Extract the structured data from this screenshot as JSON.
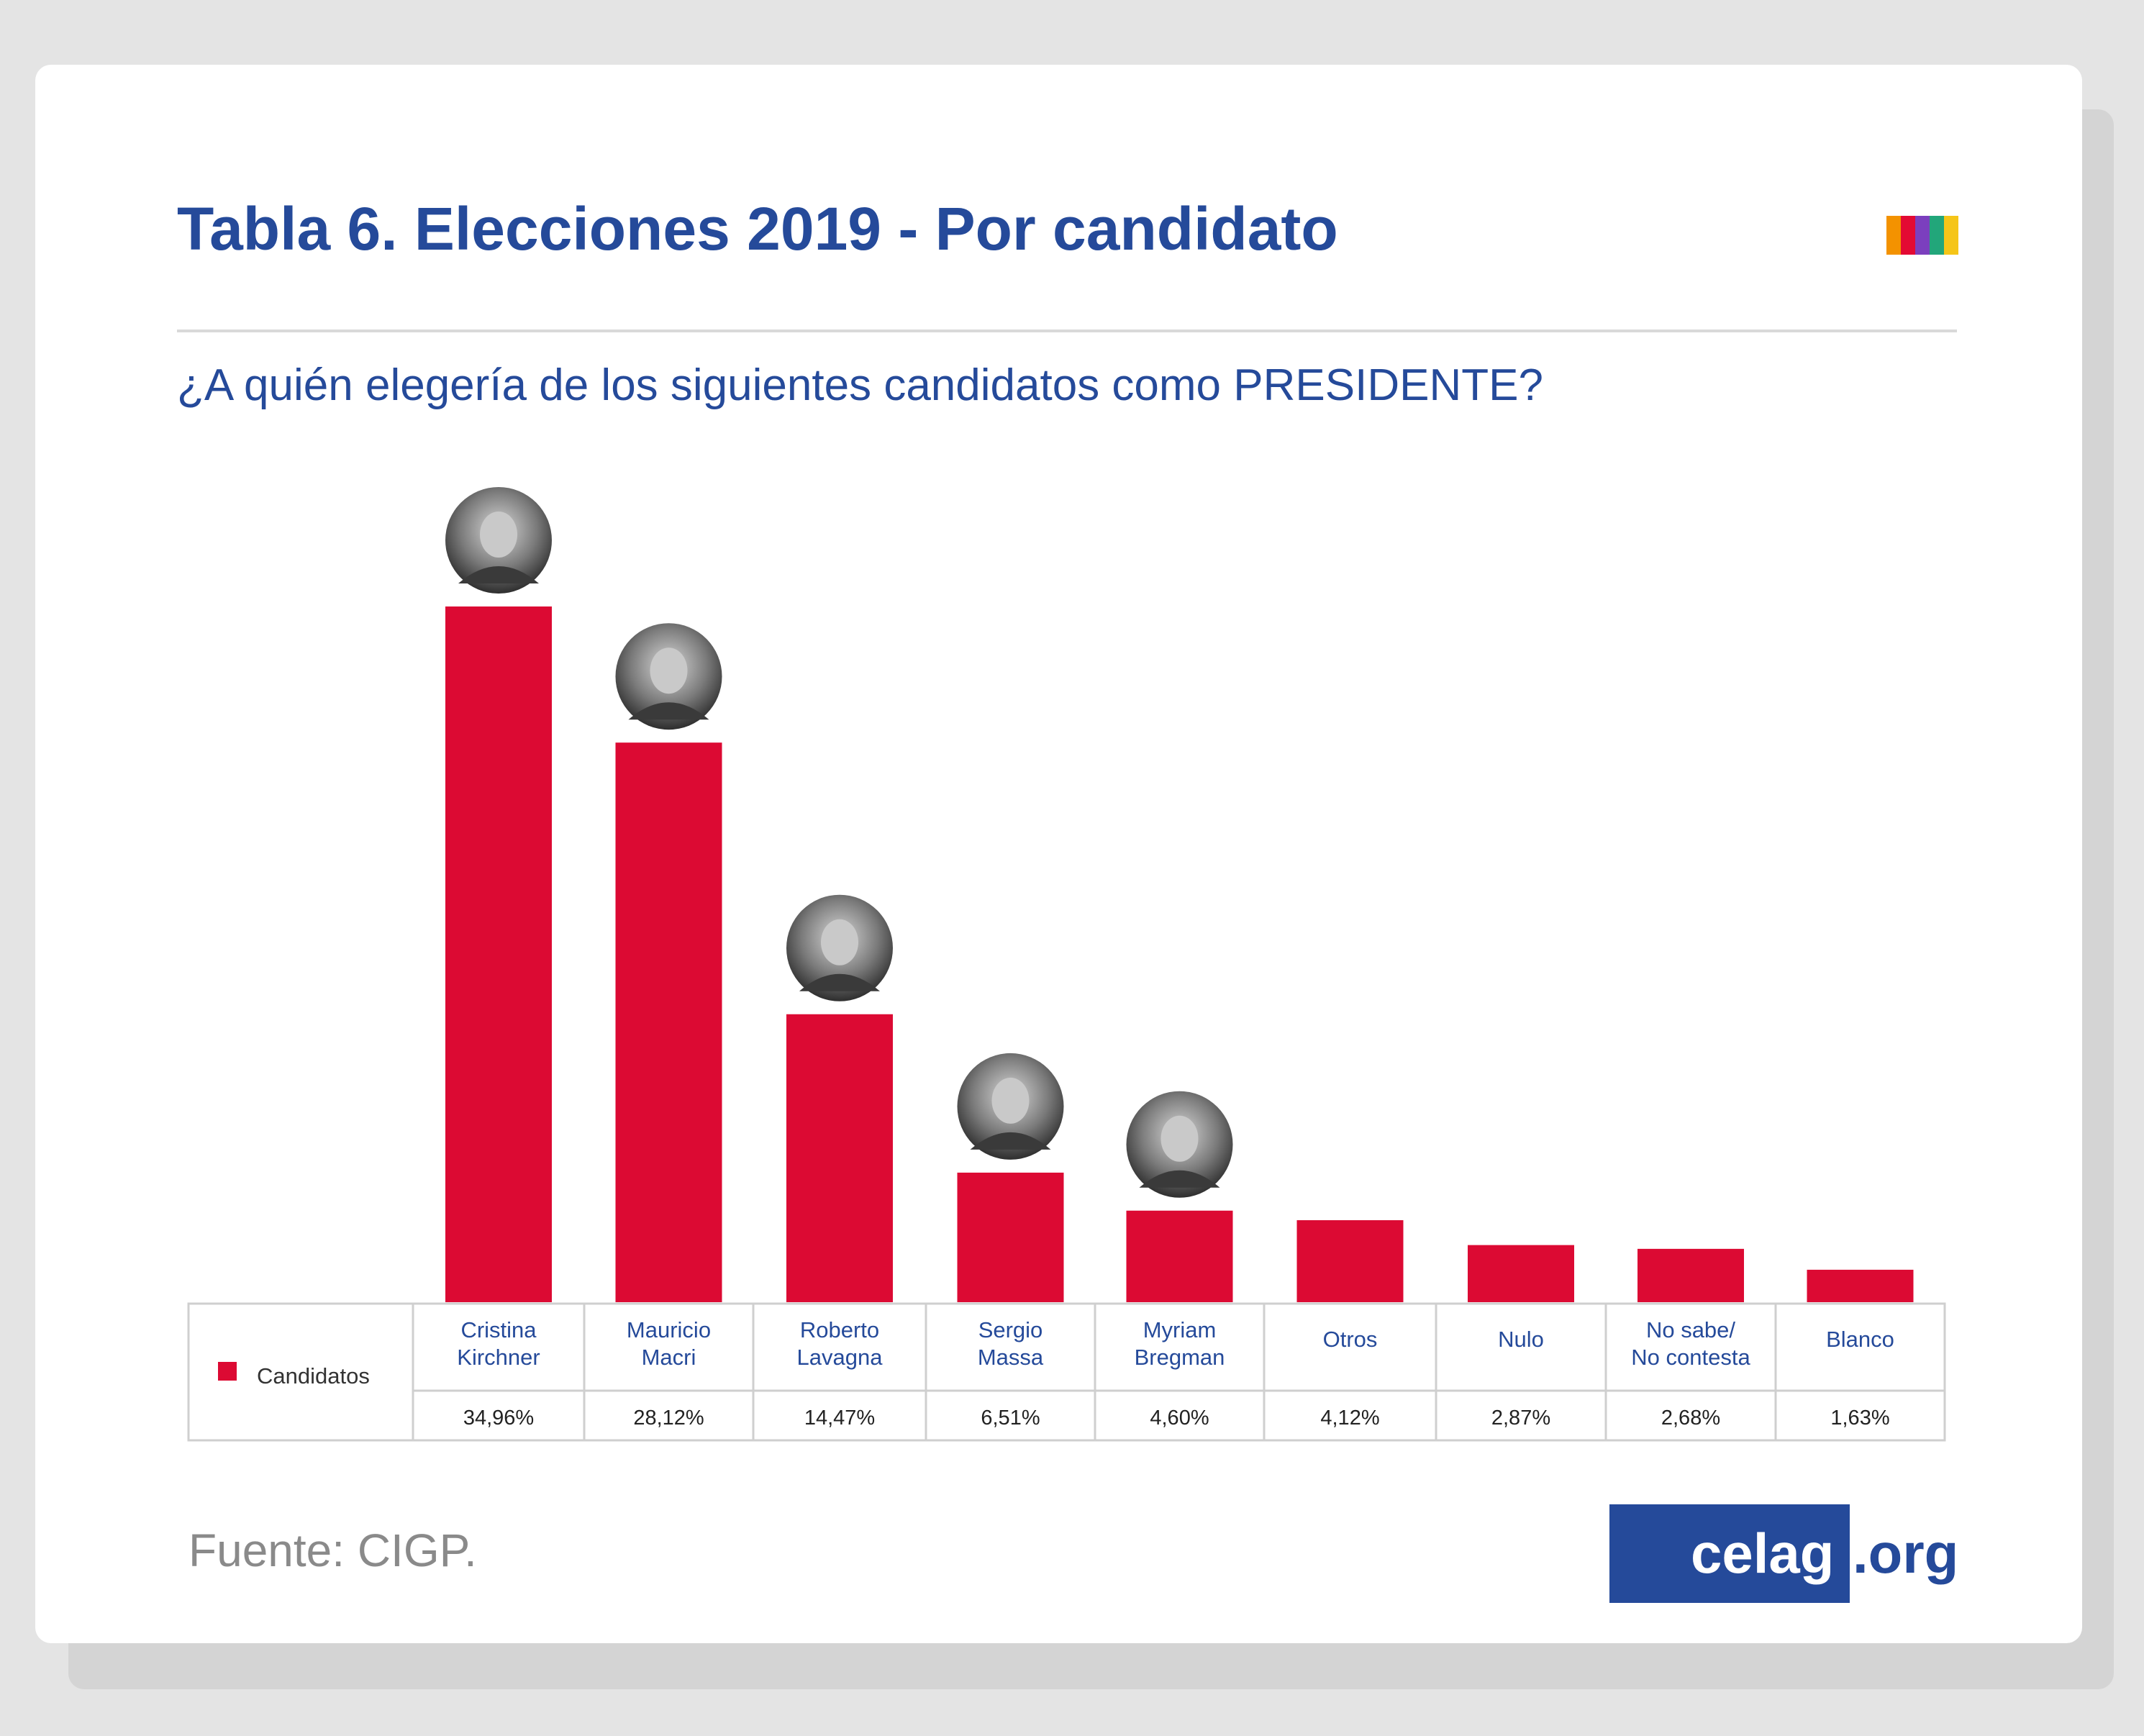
{
  "header": {
    "title": "Tabla 6. Elecciones 2019 - Por candidato",
    "question": "¿A quién elegería de los siguientes candidatos como PRESIDENTE?"
  },
  "logo_colors": [
    "#f39200",
    "#e30a33",
    "#7b3fbe",
    "#22a67a",
    "#f5c518"
  ],
  "chart_data": {
    "type": "bar",
    "title": "Tabla 6. Elecciones 2019 - Por candidato",
    "subtitle": "¿A quién elegería de los siguientes candidatos como PRESIDENTE?",
    "categories": [
      [
        "Cristina",
        "Kirchner"
      ],
      [
        "Mauricio",
        "Macri"
      ],
      [
        "Roberto",
        "Lavagna"
      ],
      [
        "Sergio",
        "Massa"
      ],
      [
        "Myriam",
        "Bregman"
      ],
      [
        "Otros"
      ],
      [
        "Nulo"
      ],
      [
        "No sabe/",
        "No contesta"
      ],
      [
        "Blanco"
      ]
    ],
    "series": [
      {
        "name": "Candidatos",
        "color": "#dc0a33",
        "values": [
          34.96,
          28.12,
          14.47,
          6.51,
          4.6,
          4.12,
          2.87,
          2.68,
          1.63
        ],
        "labels": [
          "34,96%",
          "28,12%",
          "14,47%",
          "6,51%",
          "4,60%",
          "4,12%",
          "2,87%",
          "2,68%",
          "1,63%"
        ]
      }
    ],
    "photo_icons": [
      "cristina-kirchner-photo",
      "mauricio-macri-photo",
      "roberto-lavagna-photo",
      "sergio-massa-photo",
      "myriam-bregman-photo"
    ],
    "ylim": [
      0,
      35
    ],
    "legend": "table bottom-left",
    "grid": false
  },
  "footer": {
    "source": "Fuente: CIGP.",
    "brand_main": "celag",
    "brand_suffix": ".org"
  }
}
